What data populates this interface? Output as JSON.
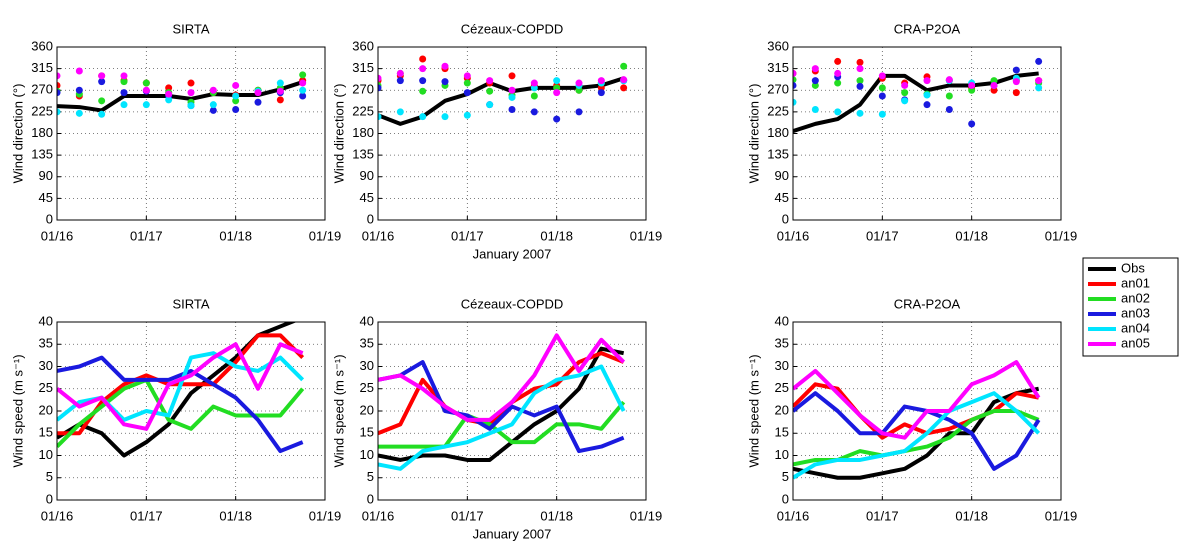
{
  "chart_data": [
    {
      "type": "line",
      "title": "SIRTA",
      "ylabel": "Wind direction (°)",
      "x": [
        16,
        16.25,
        16.5,
        16.75,
        17,
        17.25,
        17.5,
        17.75,
        18,
        18.25,
        18.5,
        18.75
      ],
      "xlim": [
        16,
        19
      ],
      "xticks": [
        {
          "value": 16,
          "label": "01/16"
        },
        {
          "value": 17,
          "label": "01/17"
        },
        {
          "value": 18,
          "label": "01/18"
        },
        {
          "value": 19,
          "label": "01/19"
        }
      ],
      "ylim": [
        0,
        360
      ],
      "yticks": [
        0,
        45,
        90,
        135,
        180,
        225,
        270,
        315,
        360
      ],
      "grid": true,
      "series": [
        {
          "name": "Obs",
          "color": "#000000",
          "style": "line",
          "values": [
            237,
            235,
            228,
            258,
            258,
            258,
            252,
            262,
            260,
            260,
            272,
            287
          ]
        },
        {
          "name": "an01",
          "color": "#ff0000",
          "style": "dots",
          "values": [
            280,
            258,
            300,
            290,
            285,
            275,
            285,
            265,
            260,
            270,
            250,
            290
          ]
        },
        {
          "name": "an02",
          "color": "#22dd22",
          "style": "dots",
          "values": [
            268,
            262,
            248,
            288,
            285,
            265,
            245,
            265,
            248,
            270,
            275,
            302
          ]
        },
        {
          "name": "an03",
          "color": "#1a1adf",
          "style": "dots",
          "values": [
            265,
            270,
            288,
            265,
            268,
            258,
            238,
            228,
            230,
            245,
            265,
            258
          ]
        },
        {
          "name": "an04",
          "color": "#00e5ff",
          "style": "dots",
          "values": [
            225,
            222,
            220,
            240,
            240,
            250,
            238,
            240,
            258,
            268,
            285,
            270
          ]
        },
        {
          "name": "an05",
          "color": "#ff00ff",
          "style": "dots",
          "values": [
            300,
            310,
            300,
            300,
            270,
            262,
            265,
            270,
            280,
            265,
            268,
            285
          ]
        }
      ]
    },
    {
      "type": "line",
      "title": "Cézeaux-COPDD",
      "ylabel": "Wind direction (°)",
      "xlabel": "January 2007",
      "x": [
        16,
        16.25,
        16.5,
        16.75,
        17,
        17.25,
        17.5,
        17.75,
        18,
        18.25,
        18.5,
        18.75
      ],
      "xlim": [
        16,
        19
      ],
      "xticks": [
        {
          "value": 16,
          "label": "01/16"
        },
        {
          "value": 17,
          "label": "01/17"
        },
        {
          "value": 18,
          "label": "01/18"
        },
        {
          "value": 19,
          "label": "01/19"
        }
      ],
      "ylim": [
        0,
        360
      ],
      "yticks": [
        0,
        45,
        90,
        135,
        180,
        225,
        270,
        315,
        360
      ],
      "grid": true,
      "series": [
        {
          "name": "Obs",
          "color": "#000000",
          "style": "line",
          "values": [
            218,
            200,
            215,
            248,
            262,
            285,
            268,
            275,
            275,
            275,
            280,
            295
          ]
        },
        {
          "name": "an01",
          "color": "#ff0000",
          "style": "dots",
          "values": [
            290,
            300,
            335,
            315,
            295,
            285,
            300,
            280,
            280,
            270,
            275,
            275
          ]
        },
        {
          "name": "an02",
          "color": "#22dd22",
          "style": "dots",
          "values": [
            280,
            305,
            268,
            280,
            285,
            268,
            260,
            258,
            275,
            270,
            285,
            320
          ]
        },
        {
          "name": "an03",
          "color": "#1a1adf",
          "style": "dots",
          "values": [
            275,
            290,
            290,
            288,
            265,
            240,
            230,
            225,
            210,
            225,
            265,
            290
          ]
        },
        {
          "name": "an04",
          "color": "#00e5ff",
          "style": "dots",
          "values": [
            215,
            225,
            215,
            215,
            218,
            240,
            255,
            275,
            290,
            280,
            285,
            290
          ]
        },
        {
          "name": "an05",
          "color": "#ff00ff",
          "style": "dots",
          "values": [
            295,
            305,
            315,
            320,
            300,
            290,
            270,
            285,
            265,
            285,
            290,
            292
          ]
        }
      ]
    },
    {
      "type": "line",
      "title": "CRA-P2OA",
      "ylabel": "Wind direction (°)",
      "x": [
        16,
        16.25,
        16.5,
        16.75,
        17,
        17.25,
        17.5,
        17.75,
        18,
        18.25,
        18.5,
        18.75
      ],
      "xlim": [
        16,
        19
      ],
      "xticks": [
        {
          "value": 16,
          "label": "01/16"
        },
        {
          "value": 17,
          "label": "01/17"
        },
        {
          "value": 18,
          "label": "01/18"
        },
        {
          "value": 19,
          "label": "01/19"
        }
      ],
      "ylim": [
        0,
        360
      ],
      "yticks": [
        0,
        45,
        90,
        135,
        180,
        225,
        270,
        315,
        360
      ],
      "grid": true,
      "series": [
        {
          "name": "Obs",
          "color": "#000000",
          "style": "line",
          "values": [
            185,
            200,
            210,
            240,
            300,
            300,
            270,
            280,
            280,
            285,
            300,
            305
          ]
        },
        {
          "name": "an01",
          "color": "#ff0000",
          "style": "dots",
          "values": [
            305,
            310,
            330,
            328,
            295,
            285,
            298,
            290,
            275,
            270,
            265,
            290
          ]
        },
        {
          "name": "an02",
          "color": "#22dd22",
          "style": "dots",
          "values": [
            292,
            280,
            285,
            290,
            275,
            265,
            262,
            258,
            270,
            290,
            290,
            285
          ]
        },
        {
          "name": "an03",
          "color": "#1a1adf",
          "style": "dots",
          "values": [
            280,
            290,
            298,
            278,
            258,
            250,
            240,
            230,
            200,
            280,
            312,
            330
          ]
        },
        {
          "name": "an04",
          "color": "#00e5ff",
          "style": "dots",
          "values": [
            245,
            230,
            225,
            222,
            220,
            248,
            260,
            290,
            285,
            280,
            295,
            275
          ]
        },
        {
          "name": "an05",
          "color": "#ff00ff",
          "style": "dots",
          "values": [
            305,
            315,
            305,
            315,
            300,
            280,
            290,
            292,
            280,
            280,
            288,
            290
          ]
        }
      ]
    },
    {
      "type": "line",
      "title": "SIRTA",
      "ylabel": "Wind speed (m s⁻¹)",
      "x": [
        16,
        16.25,
        16.5,
        16.75,
        17,
        17.25,
        17.5,
        17.75,
        18,
        18.25,
        18.5,
        18.75
      ],
      "xlim": [
        16,
        19
      ],
      "xticks": [
        {
          "value": 16,
          "label": "01/16"
        },
        {
          "value": 17,
          "label": "01/17"
        },
        {
          "value": 18,
          "label": "01/18"
        },
        {
          "value": 19,
          "label": "01/19"
        }
      ],
      "ylim": [
        0,
        40
      ],
      "yticks": [
        0,
        5,
        10,
        15,
        20,
        25,
        30,
        35,
        40
      ],
      "grid": true,
      "series": [
        {
          "name": "Obs",
          "color": "#000000",
          "style": "line",
          "values": [
            14,
            17,
            15,
            10,
            13,
            17,
            24,
            28,
            32,
            37,
            39,
            41
          ]
        },
        {
          "name": "an01",
          "color": "#ff0000",
          "style": "line",
          "values": [
            15,
            15,
            22,
            26,
            28,
            26,
            26,
            26,
            31,
            37,
            37,
            32
          ]
        },
        {
          "name": "an02",
          "color": "#22dd22",
          "style": "line",
          "values": [
            12,
            17,
            21,
            25,
            27,
            18,
            16,
            21,
            19,
            19,
            19,
            25
          ]
        },
        {
          "name": "an03",
          "color": "#1a1adf",
          "style": "line",
          "values": [
            29,
            30,
            32,
            27,
            27,
            27,
            29,
            26,
            23,
            18,
            11,
            13
          ]
        },
        {
          "name": "an04",
          "color": "#00e5ff",
          "style": "line",
          "values": [
            18,
            22,
            23,
            18,
            20,
            19,
            32,
            33,
            30,
            29,
            32,
            27
          ]
        },
        {
          "name": "an05",
          "color": "#ff00ff",
          "style": "line",
          "values": [
            25,
            21,
            23,
            17,
            16,
            26,
            28,
            32,
            35,
            25,
            35,
            33
          ]
        }
      ]
    },
    {
      "type": "line",
      "title": "Cézeaux-COPDD",
      "ylabel": "Wind speed (m s⁻¹)",
      "xlabel": "January 2007",
      "x": [
        16,
        16.25,
        16.5,
        16.75,
        17,
        17.25,
        17.5,
        17.75,
        18,
        18.25,
        18.5,
        18.75
      ],
      "xlim": [
        16,
        19
      ],
      "xticks": [
        {
          "value": 16,
          "label": "01/16"
        },
        {
          "value": 17,
          "label": "01/17"
        },
        {
          "value": 18,
          "label": "01/18"
        },
        {
          "value": 19,
          "label": "01/19"
        }
      ],
      "ylim": [
        0,
        40
      ],
      "yticks": [
        0,
        5,
        10,
        15,
        20,
        25,
        30,
        35,
        40
      ],
      "grid": true,
      "series": [
        {
          "name": "Obs",
          "color": "#000000",
          "style": "line",
          "values": [
            10,
            9,
            10,
            10,
            9,
            9,
            13,
            17,
            20,
            25,
            34,
            33
          ]
        },
        {
          "name": "an01",
          "color": "#ff0000",
          "style": "line",
          "values": [
            15,
            17,
            27,
            21,
            18,
            17,
            22,
            25,
            26,
            31,
            33,
            31
          ]
        },
        {
          "name": "an02",
          "color": "#22dd22",
          "style": "line",
          "values": [
            12,
            12,
            12,
            12,
            19,
            17,
            13,
            13,
            17,
            17,
            16,
            22
          ]
        },
        {
          "name": "an03",
          "color": "#1a1adf",
          "style": "line",
          "values": [
            27,
            28,
            31,
            20,
            19,
            16,
            21,
            19,
            21,
            11,
            12,
            14
          ]
        },
        {
          "name": "an04",
          "color": "#00e5ff",
          "style": "line",
          "values": [
            8,
            7,
            11,
            12,
            13,
            15,
            17,
            24,
            27,
            28,
            30,
            20
          ]
        },
        {
          "name": "an05",
          "color": "#ff00ff",
          "style": "line",
          "values": [
            27,
            28,
            25,
            21,
            18,
            18,
            22,
            28,
            37,
            29,
            36,
            31
          ]
        }
      ]
    },
    {
      "type": "line",
      "title": "CRA-P2OA",
      "ylabel": "Wind speed (m s⁻¹)",
      "legend": "outside right",
      "x": [
        16,
        16.25,
        16.5,
        16.75,
        17,
        17.25,
        17.5,
        17.75,
        18,
        18.25,
        18.5,
        18.75
      ],
      "xlim": [
        16,
        19
      ],
      "xticks": [
        {
          "value": 16,
          "label": "01/16"
        },
        {
          "value": 17,
          "label": "01/17"
        },
        {
          "value": 18,
          "label": "01/18"
        },
        {
          "value": 19,
          "label": "01/19"
        }
      ],
      "ylim": [
        0,
        40
      ],
      "yticks": [
        0,
        5,
        10,
        15,
        20,
        25,
        30,
        35,
        40
      ],
      "grid": true,
      "series": [
        {
          "name": "Obs",
          "color": "#000000",
          "style": "line",
          "values": [
            7,
            6,
            5,
            5,
            6,
            7,
            10,
            15,
            15,
            22,
            24,
            25
          ]
        },
        {
          "name": "an01",
          "color": "#ff0000",
          "style": "line",
          "values": [
            21,
            26,
            25,
            19,
            14,
            17,
            15,
            16,
            18,
            20,
            24,
            23
          ]
        },
        {
          "name": "an02",
          "color": "#22dd22",
          "style": "line",
          "values": [
            8,
            9,
            9,
            11,
            10,
            11,
            12,
            14,
            18,
            20,
            20,
            18
          ]
        },
        {
          "name": "an03",
          "color": "#1a1adf",
          "style": "line",
          "values": [
            20,
            24,
            20,
            15,
            15,
            21,
            20,
            18,
            15,
            7,
            10,
            18
          ]
        },
        {
          "name": "an04",
          "color": "#00e5ff",
          "style": "line",
          "values": [
            5,
            8,
            9,
            9,
            10,
            11,
            15,
            20,
            22,
            24,
            20,
            15
          ]
        },
        {
          "name": "an05",
          "color": "#ff00ff",
          "style": "line",
          "values": [
            25,
            29,
            24,
            19,
            15,
            14,
            20,
            20,
            26,
            28,
            31,
            23
          ]
        }
      ]
    }
  ]
}
